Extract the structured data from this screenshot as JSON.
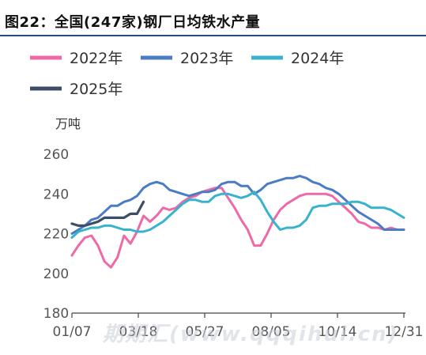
{
  "figure": {
    "title": "图22：全国(247家)钢厂日均铁水产量",
    "watermark": "期期汇(www.qqqihui.cn)"
  },
  "chart_data": {
    "type": "line",
    "unit": "万吨",
    "x_ticks": [
      "01/07",
      "03/18",
      "05/27",
      "08/05",
      "10/14",
      "12/31"
    ],
    "ylim": [
      180,
      260
    ],
    "y_ticks": [
      180,
      200,
      220,
      240,
      260
    ],
    "grid": false,
    "legend_position": "top-left",
    "series": [
      {
        "name": "2022年",
        "color": "#ee6aa7",
        "values": [
          209,
          214,
          218,
          219,
          214,
          206,
          203,
          208,
          219,
          215,
          221,
          229,
          226,
          229,
          233,
          232,
          233,
          236,
          238,
          239,
          241,
          242,
          243,
          243,
          238,
          233,
          227,
          222,
          214,
          214,
          220,
          227,
          232,
          235,
          237,
          239,
          240,
          240,
          240,
          240,
          239,
          236,
          233,
          230,
          226,
          225,
          223,
          223,
          222,
          223,
          222,
          222
        ]
      },
      {
        "name": "2023年",
        "color": "#4a7cc4",
        "values": [
          220,
          222,
          224,
          227,
          228,
          231,
          234,
          234,
          236,
          237,
          239,
          243,
          245,
          246,
          245,
          242,
          241,
          240,
          239,
          240,
          241,
          241,
          242,
          245,
          246,
          246,
          244,
          244,
          240,
          242,
          245,
          246,
          247,
          248,
          248,
          249,
          248,
          246,
          245,
          243,
          242,
          240,
          237,
          234,
          231,
          229,
          227,
          225,
          222,
          222,
          222,
          222
        ]
      },
      {
        "name": "2024年",
        "color": "#38b2cd",
        "values": [
          218,
          221,
          222,
          223,
          223,
          224,
          224,
          223,
          222,
          222,
          221,
          221,
          222,
          224,
          226,
          229,
          232,
          235,
          237,
          237,
          236,
          236,
          239,
          240,
          240,
          239,
          238,
          239,
          241,
          237,
          231,
          226,
          222,
          223,
          223,
          224,
          227,
          233,
          234,
          234,
          235,
          235,
          235,
          236,
          236,
          235,
          233,
          233,
          233,
          232,
          230,
          228
        ]
      },
      {
        "name": "2025年",
        "color": "#3d4d65",
        "values": [
          225,
          224,
          224,
          225,
          226,
          228,
          228,
          228,
          228,
          230,
          230,
          236
        ]
      }
    ]
  }
}
